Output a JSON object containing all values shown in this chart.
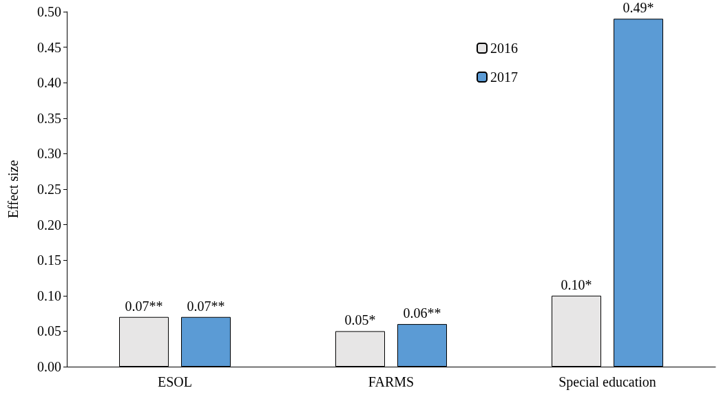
{
  "chart_data": {
    "type": "bar",
    "ylabel": "Effect size",
    "categories": [
      "ESOL",
      "FARMS",
      "Special education"
    ],
    "series": [
      {
        "name": "2016",
        "color": "#e7e6e6",
        "values": [
          0.07,
          0.05,
          0.1
        ],
        "value_labels": [
          "0.07**",
          "0.05*",
          "0.10*"
        ]
      },
      {
        "name": "2017",
        "color": "#5b9bd5",
        "values": [
          0.07,
          0.06,
          0.49
        ],
        "value_labels": [
          "0.07**",
          "0.06**",
          "0.49*"
        ]
      }
    ],
    "ylim": [
      0,
      0.5
    ],
    "yticks": [
      {
        "value": 0,
        "label": "0.00"
      },
      {
        "value": 0.05,
        "label": "0.05"
      },
      {
        "value": 0.1,
        "label": "0.10"
      },
      {
        "value": 0.15,
        "label": "0.15"
      },
      {
        "value": 0.2,
        "label": "0.20"
      },
      {
        "value": 0.25,
        "label": "0.25"
      },
      {
        "value": 0.3,
        "label": "0.30"
      },
      {
        "value": 0.35,
        "label": "0.35"
      },
      {
        "value": 0.4,
        "label": "0.40"
      },
      {
        "value": 0.45,
        "label": "0.45"
      },
      {
        "value": 0.5,
        "label": "0.50"
      }
    ],
    "grid": false,
    "legend": "top right"
  }
}
